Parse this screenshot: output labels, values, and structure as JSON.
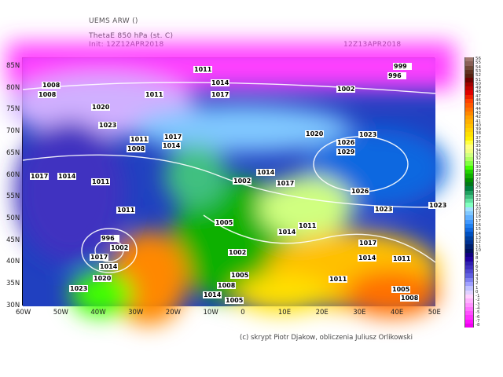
{
  "header": {
    "model": "UEMS ARW ()",
    "field": "ThetaE 850 hPa (st. C)",
    "init": "Init: 12Z12APR2018",
    "valid": "12Z13APR2018"
  },
  "axes": {
    "lat_labels": [
      "85N",
      "80N",
      "75N",
      "70N",
      "65N",
      "60N",
      "55N",
      "50N",
      "45N",
      "40N",
      "35N",
      "30N"
    ],
    "lon_labels": [
      "60W",
      "50W",
      "40W",
      "30W",
      "20W",
      "10W",
      "0",
      "10E",
      "20E",
      "30E",
      "40E",
      "50E"
    ]
  },
  "isobar_labels": [
    "1011",
    "1008",
    "1011",
    "1014",
    "1017",
    "1008",
    "1002",
    "999",
    "996",
    "1020",
    "1023",
    "1017",
    "1020",
    "1026",
    "1029",
    "1023",
    "1011",
    "1014",
    "1017",
    "1008",
    "1002",
    "1014",
    "1017",
    "1011",
    "1014",
    "1023",
    "1026",
    "1023",
    "1011",
    "996",
    "1002",
    "1017",
    "1014",
    "1020",
    "1023",
    "1005",
    "1002",
    "1005",
    "1008",
    "1005",
    "1014",
    "1014",
    "1011",
    "1017",
    "1014",
    "1011",
    "1011",
    "1005",
    "1008"
  ],
  "colorbar": {
    "levels": [
      56,
      55,
      54,
      53,
      52,
      51,
      50,
      49,
      48,
      47,
      46,
      45,
      44,
      43,
      42,
      41,
      40,
      39,
      38,
      37,
      36,
      35,
      34,
      33,
      32,
      31,
      30,
      29,
      28,
      27,
      26,
      25,
      24,
      23,
      22,
      21,
      20,
      19,
      18,
      17,
      16,
      15,
      14,
      13,
      12,
      11,
      10,
      9,
      8,
      7,
      6,
      5,
      4,
      3,
      2,
      1,
      0,
      -1,
      -2,
      -3,
      -4,
      -5,
      -6,
      -7,
      -8
    ],
    "colors": [
      "#a07870",
      "#8a6058",
      "#704838",
      "#603020",
      "#582010",
      "#700000",
      "#a00000",
      "#c00000",
      "#e00000",
      "#f02000",
      "#ff4000",
      "#ff5a00",
      "#ff7000",
      "#ff8800",
      "#ffa000",
      "#ffb000",
      "#ffc000",
      "#ffd000",
      "#ffe000",
      "#fff000",
      "#ffff40",
      "#ffff80",
      "#f0ff80",
      "#d0ff80",
      "#b0ff60",
      "#80ff40",
      "#40ff00",
      "#20d000",
      "#10b000",
      "#009000",
      "#007818",
      "#008040",
      "#20a060",
      "#40c080",
      "#60e0a0",
      "#80ffc0",
      "#a0e0ff",
      "#80c8ff",
      "#60b0ff",
      "#4098ff",
      "#2080f0",
      "#1068e0",
      "#0050c0",
      "#0040a0",
      "#003090",
      "#002070",
      "#001060",
      "#100080",
      "#2000a0",
      "#3020b0",
      "#4030c0",
      "#5048d0",
      "#6060e0",
      "#8080f0",
      "#a0a0ff",
      "#c0c0ff",
      "#e0d0ff",
      "#ffd0ff",
      "#ffb0ff",
      "#ff90ff",
      "#ff70ff",
      "#ff50ff",
      "#ff30ff",
      "#ff10ff",
      "#f000f0"
    ]
  },
  "footer": "(c) skrypt Piotr Djakow, obliczenia Juliusz Orlikowski"
}
